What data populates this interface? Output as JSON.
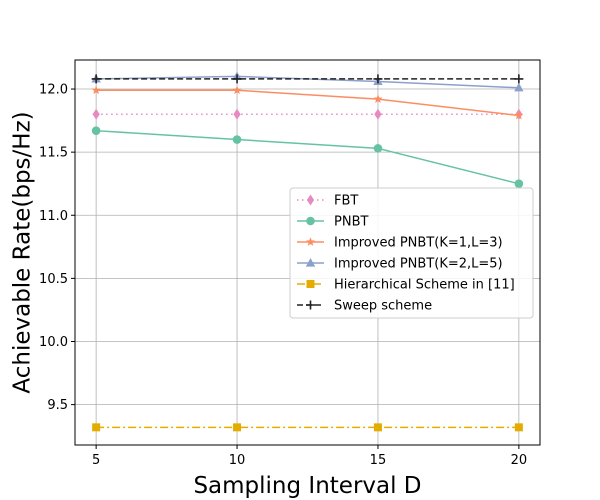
{
  "chart_data": {
    "type": "line",
    "title": "",
    "xlabel": "Sampling Interval D",
    "ylabel": "Achievable Rate(bps/Hz)",
    "x": [
      5,
      10,
      15,
      20
    ],
    "xlim": [
      4.25,
      20.75
    ],
    "ylim": [
      9.18,
      12.23
    ],
    "xticks": [
      5,
      10,
      15,
      20
    ],
    "xtick_labels": [
      "5",
      "10",
      "15",
      "20"
    ],
    "yticks": [
      9.5,
      10.0,
      10.5,
      11.0,
      11.5,
      12.0
    ],
    "ytick_labels": [
      "9.5",
      "10.0",
      "10.5",
      "11.0",
      "11.5",
      "12.0"
    ],
    "grid": true,
    "legend_position": "center-right",
    "series": [
      {
        "name": "FBT",
        "values": [
          11.8,
          11.8,
          11.8,
          11.8
        ],
        "color": "#e78ac3",
        "dash": "dotted",
        "marker": "diamond"
      },
      {
        "name": "PNBT",
        "values": [
          11.67,
          11.6,
          11.53,
          11.25
        ],
        "color": "#66c2a5",
        "dash": "solid",
        "marker": "circle"
      },
      {
        "name": "Improved PNBT(K=1,L=3)",
        "values": [
          11.99,
          11.99,
          11.92,
          11.79
        ],
        "color": "#fc8d62",
        "dash": "solid",
        "marker": "star"
      },
      {
        "name": "Improved PNBT(K=2,L=5)",
        "values": [
          12.08,
          12.1,
          12.06,
          12.01
        ],
        "color": "#8da0cb",
        "dash": "solid",
        "marker": "triangle"
      },
      {
        "name": "Hierarchical Scheme in [11]",
        "values": [
          9.32,
          9.32,
          9.32,
          9.32
        ],
        "color": "#e5ac00",
        "dash": "dashdot",
        "marker": "square"
      },
      {
        "name": "Sweep scheme",
        "values": [
          12.08,
          12.08,
          12.08,
          12.08
        ],
        "color": "#222222",
        "dash": "dashed",
        "marker": "plus"
      }
    ]
  }
}
